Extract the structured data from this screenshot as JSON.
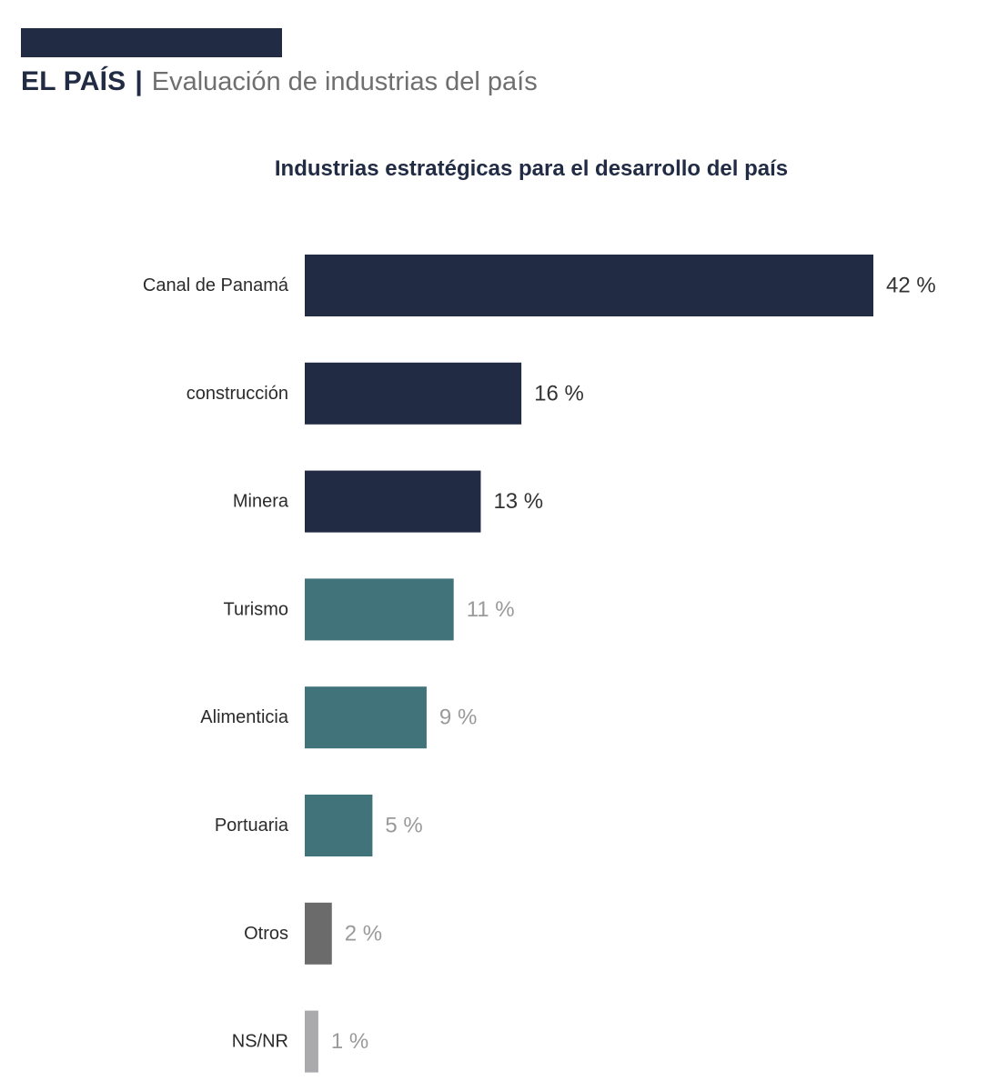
{
  "header": {
    "brand": "EL PAÍS",
    "separator": "|",
    "subtitle": "Evaluación de industrias del país"
  },
  "colors": {
    "navy": "#212b44",
    "teal": "#41737a",
    "dark_gray": "#6b6b6b",
    "light_gray": "#aaaaad",
    "label_text": "#2b2b2b",
    "value_dark": "#333333",
    "value_muted": "#9a9a9a"
  },
  "chart_data": {
    "type": "bar",
    "orientation": "horizontal",
    "title": "Industrias estratégicas para el desarrollo del país",
    "categories": [
      "Canal de Panamá",
      "construcción",
      "Minera",
      "Turismo",
      "Alimenticia",
      "Portuaria",
      "Otros",
      "NS/NR"
    ],
    "values": [
      42,
      16,
      13,
      11,
      9,
      5,
      2,
      1
    ],
    "value_labels": [
      "42 %",
      "16 %",
      "13 %",
      "11 %",
      "9 %",
      "5 %",
      "2 %",
      "1 %"
    ],
    "bar_colors": [
      "#212b44",
      "#212b44",
      "#212b44",
      "#41737a",
      "#41737a",
      "#41737a",
      "#6b6b6b",
      "#aaaaad"
    ],
    "value_label_colors": [
      "#333333",
      "#333333",
      "#333333",
      "#9a9a9a",
      "#9a9a9a",
      "#9a9a9a",
      "#9a9a9a",
      "#9a9a9a"
    ],
    "unit": "%",
    "xlim": [
      0,
      42
    ],
    "grid": false,
    "legend": "none"
  }
}
